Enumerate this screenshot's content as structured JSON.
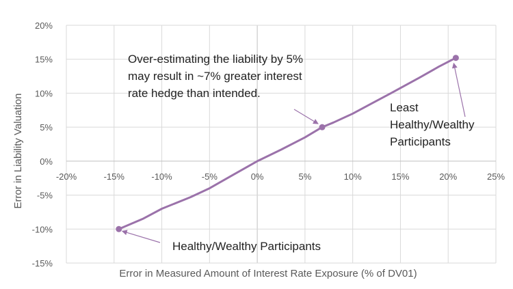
{
  "chart_data": {
    "type": "line",
    "xlabel": "Error in Measured Amount of Interest Rate Exposure (% of DV01)",
    "ylabel": "Error in Liability Valuation",
    "xlim": [
      -20,
      25
    ],
    "ylim": [
      -15,
      20
    ],
    "x_ticks": [
      "-20%",
      "-15%",
      "-10%",
      "-5%",
      "0%",
      "5%",
      "10%",
      "15%",
      "20%",
      "25%"
    ],
    "y_ticks": [
      "20%",
      "15%",
      "10%",
      "5%",
      "0%",
      "-5%",
      "-10%",
      "-15%"
    ],
    "grid": true,
    "color": "#9b72aa",
    "series": [
      {
        "values": [
          [
            -14.5,
            -10
          ],
          [
            -12,
            -8.5
          ],
          [
            -10,
            -7
          ],
          [
            -7,
            -5.3
          ],
          [
            -5,
            -4
          ],
          [
            -2.5,
            -2
          ],
          [
            0,
            0
          ],
          [
            2.5,
            1.7
          ],
          [
            5,
            3.5
          ],
          [
            6.8,
            5
          ],
          [
            8,
            5.7
          ],
          [
            10,
            7
          ],
          [
            12,
            8.5
          ],
          [
            14,
            10
          ],
          [
            17,
            12.3
          ],
          [
            19,
            13.9
          ],
          [
            20.8,
            15.2
          ]
        ]
      }
    ],
    "markers": [
      {
        "x": -14.5,
        "y": -10
      },
      {
        "x": 6.8,
        "y": 5
      },
      {
        "x": 20.8,
        "y": 15.2
      }
    ],
    "annotations": [
      {
        "lines": [
          "Over-estimating  the liability by 5%",
          "may result in ~7% greater interest",
          "rate hedge than intended."
        ],
        "arrow_to": {
          "x": 6.8,
          "y": 5
        }
      },
      {
        "lines": [
          "Least",
          "Healthy/Wealthy",
          "Participants"
        ],
        "arrow_to": {
          "x": 20.8,
          "y": 15.2
        }
      },
      {
        "lines": [
          "Healthy/Wealthy Participants"
        ],
        "arrow_to": {
          "x": -14.5,
          "y": -10
        }
      }
    ]
  }
}
